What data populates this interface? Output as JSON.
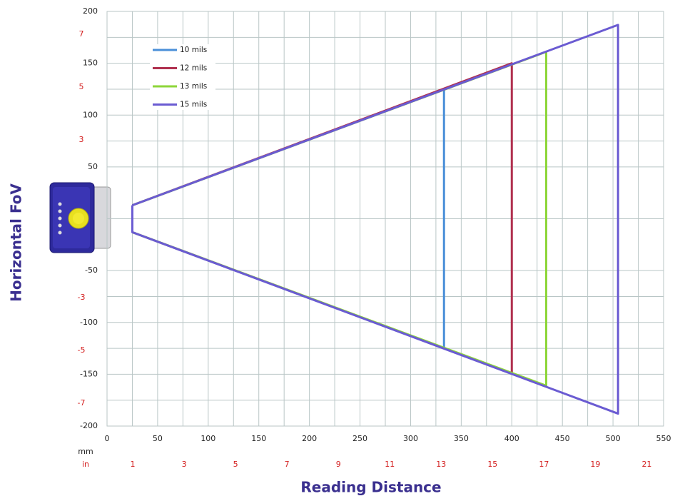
{
  "chart_data": {
    "type": "line",
    "x_label": "Reading Distance",
    "y_label": "Horizontal FoV",
    "x_unit": "mm",
    "x2_unit": "in",
    "xlim": [
      0,
      550
    ],
    "xticks": [
      0,
      50,
      100,
      150,
      200,
      250,
      300,
      350,
      400,
      450,
      500,
      550
    ],
    "ylim": [
      -200,
      200
    ],
    "yticks": [
      -200,
      -150,
      -100,
      -50,
      50,
      100,
      150,
      200
    ],
    "x2lim": [
      0,
      21.654
    ],
    "x2ticks": [
      1,
      3,
      5,
      7,
      9,
      11,
      13,
      15,
      17,
      19,
      21
    ],
    "y2lim": [
      -7.874,
      7.874
    ],
    "y2ticks": [
      7,
      5,
      3,
      -3,
      -5,
      -7
    ],
    "grid": true,
    "minor_grid": true,
    "legend": "upper left",
    "series": [
      {
        "name": "10 mils",
        "color": "#4a8fd8",
        "x": [
          25,
          333,
          333,
          25
        ],
        "values": [
          13,
          125,
          -125,
          -13
        ]
      },
      {
        "name": "12 mils",
        "color": "#b0304f",
        "x": [
          25,
          400,
          400,
          25
        ],
        "values": [
          13,
          150,
          -149,
          -13
        ]
      },
      {
        "name": "13 mils",
        "color": "#8ed63a",
        "x": [
          25,
          434,
          434,
          25
        ],
        "values": [
          13,
          161,
          -161,
          -13
        ]
      },
      {
        "name": "15 mils",
        "color": "#6a5bd2",
        "x": [
          25,
          505,
          505,
          25,
          25
        ],
        "values": [
          13,
          187,
          -188,
          -13,
          13
        ]
      }
    ]
  }
}
